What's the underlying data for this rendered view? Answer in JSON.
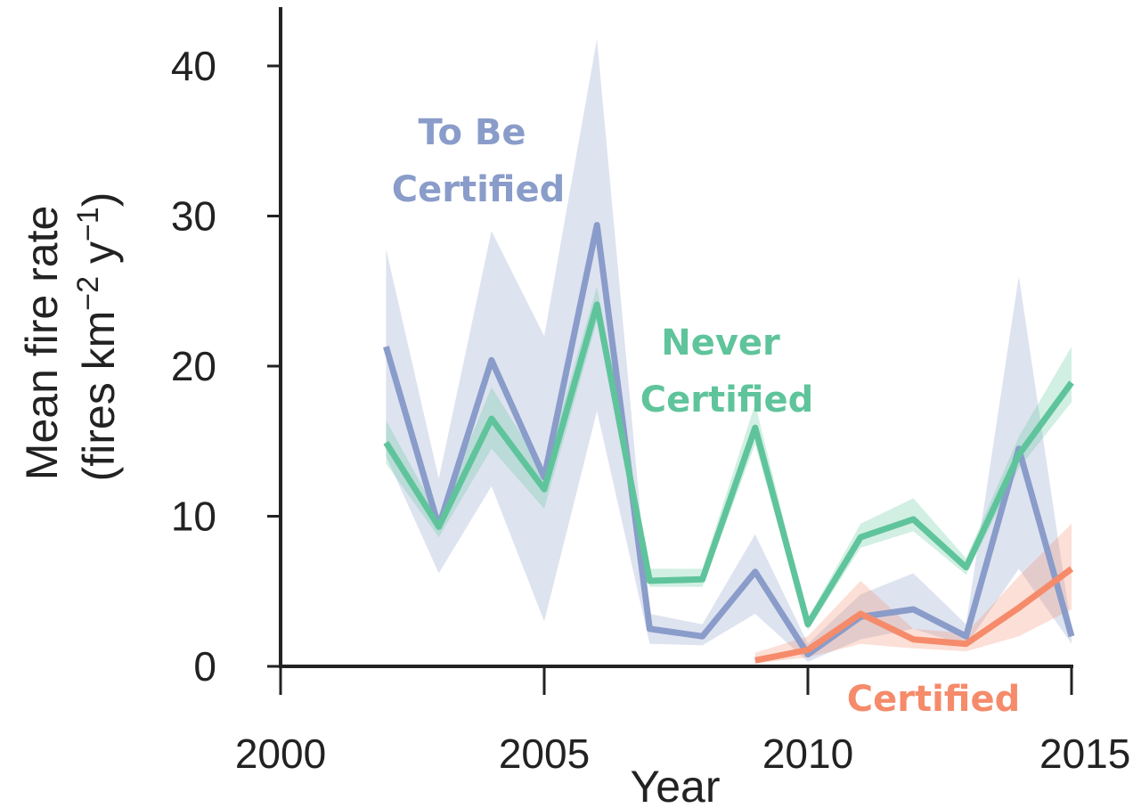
{
  "chart_data": {
    "type": "line",
    "xlabel": "Year",
    "ylabel_lines": [
      "Mean fire rate",
      "(fires km",
      "−2",
      " y",
      "−1",
      ")"
    ],
    "xlim": [
      2000,
      2015
    ],
    "ylim": [
      0,
      44
    ],
    "xticks": [
      2000,
      2005,
      2010,
      2015
    ],
    "yticks": [
      0,
      10,
      20,
      30,
      40
    ],
    "series": [
      {
        "name_lines": [
          "To Be",
          "Certified"
        ],
        "color": "#8a9cc9",
        "x": [
          2002,
          2003,
          2004,
          2005,
          2006,
          2007,
          2008,
          2009,
          2010,
          2011,
          2012,
          2013,
          2014,
          2015
        ],
        "values": [
          21.3,
          9.3,
          20.4,
          12.6,
          29.4,
          2.5,
          2.0,
          6.3,
          0.8,
          3.3,
          3.8,
          2.0,
          14.5,
          2.0
        ],
        "lower": [
          14.0,
          6.2,
          12.0,
          3.0,
          17.0,
          1.5,
          1.4,
          3.5,
          0.3,
          1.8,
          2.5,
          1.4,
          6.5,
          1.5
        ],
        "upper": [
          27.8,
          12.5,
          29.0,
          22.0,
          41.8,
          3.5,
          2.8,
          8.8,
          1.5,
          4.8,
          6.2,
          2.8,
          26.0,
          2.5
        ]
      },
      {
        "name_lines": [
          "Never",
          "Certified"
        ],
        "color": "#5fc49b",
        "x": [
          2002,
          2003,
          2004,
          2005,
          2006,
          2007,
          2008,
          2009,
          2010,
          2011,
          2012,
          2013,
          2014,
          2015
        ],
        "values": [
          14.9,
          9.3,
          16.5,
          11.8,
          24.1,
          5.7,
          5.8,
          15.9,
          2.8,
          8.6,
          9.8,
          6.6,
          14.1,
          18.9
        ],
        "lower": [
          13.5,
          8.6,
          14.5,
          10.5,
          23.0,
          5.3,
          5.3,
          14.8,
          2.4,
          7.9,
          9.0,
          6.1,
          13.2,
          17.6
        ],
        "upper": [
          16.4,
          10.0,
          18.6,
          13.0,
          25.3,
          6.5,
          6.5,
          17.5,
          3.2,
          9.5,
          11.2,
          7.2,
          15.3,
          21.3
        ]
      },
      {
        "name_lines": [
          "Certified"
        ],
        "color": "#f58b6a",
        "x": [
          2009,
          2010,
          2011,
          2012,
          2013,
          2014,
          2015
        ],
        "values": [
          0.4,
          1.1,
          3.5,
          1.8,
          1.5,
          3.9,
          6.5
        ],
        "lower": [
          0.2,
          0.6,
          1.5,
          1.2,
          1.0,
          2.0,
          3.8
        ],
        "upper": [
          0.9,
          2.0,
          5.7,
          2.5,
          2.2,
          6.0,
          9.5
        ]
      }
    ]
  }
}
